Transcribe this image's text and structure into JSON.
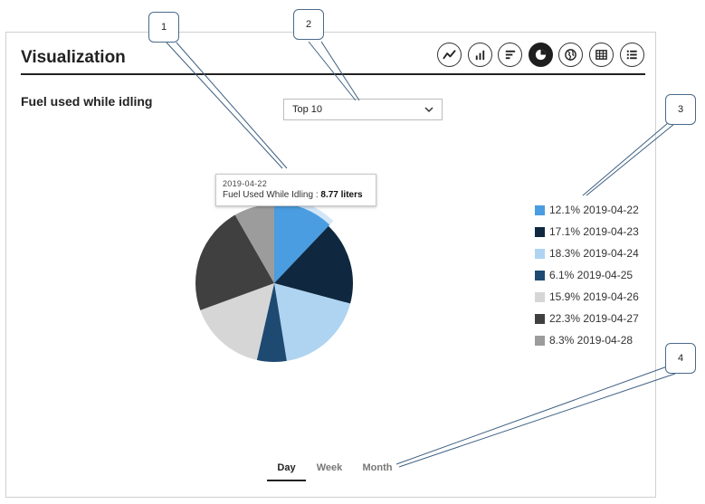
{
  "header": {
    "title": "Visualization"
  },
  "toolbar": {
    "buttons": [
      {
        "icon": "line-chart-icon",
        "active": false
      },
      {
        "icon": "bar-chart-icon",
        "active": false
      },
      {
        "icon": "horizontal-bar-chart-icon",
        "active": false
      },
      {
        "icon": "pie-chart-icon",
        "active": true
      },
      {
        "icon": "globe-icon",
        "active": false
      },
      {
        "icon": "table-icon",
        "active": false
      },
      {
        "icon": "list-icon",
        "active": false
      }
    ]
  },
  "section": {
    "title": "Fuel used while idling"
  },
  "dropdown": {
    "selected": "Top 10"
  },
  "tooltip": {
    "date": "2019-04-22",
    "label": "Fuel Used While Idling : ",
    "value": "8.77 liters"
  },
  "chart_data": {
    "type": "pie",
    "title": "Fuel used while idling",
    "slices": [
      {
        "label": "2019-04-22",
        "percent": 12.1,
        "color": "#4a9de0",
        "legend": "12.1% 2019-04-22"
      },
      {
        "label": "2019-04-23",
        "percent": 17.1,
        "color": "#0f2840",
        "legend": "17.1% 2019-04-23"
      },
      {
        "label": "2019-04-24",
        "percent": 18.3,
        "color": "#aed4f1",
        "legend": "18.3% 2019-04-24"
      },
      {
        "label": "2019-04-25",
        "percent": 6.1,
        "color": "#1e4a72",
        "legend": "6.1% 2019-04-25"
      },
      {
        "label": "2019-04-26",
        "percent": 15.9,
        "color": "#d6d6d6",
        "legend": "15.9% 2019-04-26"
      },
      {
        "label": "2019-04-27",
        "percent": 22.3,
        "color": "#404040",
        "legend": "22.3% 2019-04-27"
      },
      {
        "label": "2019-04-28",
        "percent": 8.3,
        "color": "#9c9c9c",
        "legend": "8.3% 2019-04-28"
      }
    ],
    "highlighted": "2019-04-22"
  },
  "tabs": {
    "day": "Day",
    "week": "Week",
    "month": "Month",
    "active": "day"
  },
  "callouts": {
    "c1": "1",
    "c2": "2",
    "c3": "3",
    "c4": "4"
  }
}
